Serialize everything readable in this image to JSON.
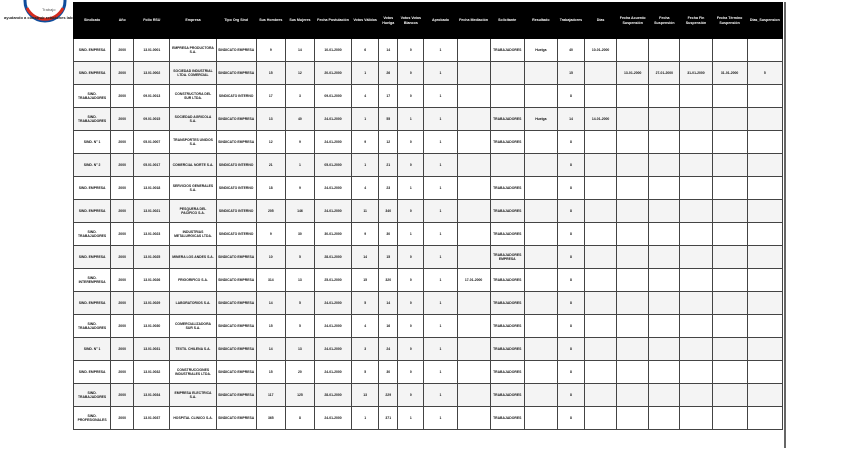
{
  "header": {
    "logo_text": "Trabajo",
    "tagline": "ayudando a construir relaciones laborales",
    "colors": {
      "logo_red": "#d52b1e",
      "logo_blue": "#0f4c9c",
      "header_bg": "#000000"
    }
  },
  "table": {
    "columns": [
      "Sindicato",
      "Año",
      "Folio RSU",
      "Empresa",
      "Tipo Org Sind",
      "Sus Hombres",
      "Sus Mujeres",
      "Fecha Postulación",
      "Votos Válidos",
      "Votos Huelga",
      "Votos Votos Blancos",
      "Aprobado",
      "Fecha Mediación",
      "Solicitante",
      "Resultado",
      "Trabajadores",
      "Días",
      "Fecha Acuerdo Suspensión",
      "Fecha Suspensión",
      "Fecha Fin Suspensión",
      "Fecha Término Suspensión",
      "Dias_Suspension"
    ],
    "rows": [
      [
        "SIND. EMPRESA",
        "2000",
        "13.01.0001",
        "EMPRESA PRODUCTORA S.A.",
        "SINDICATO EMPRESA",
        "9",
        "14",
        "10-01-2000",
        "6",
        "14",
        "0",
        "1",
        "",
        "TRABAJADORES",
        "Huelga",
        "40",
        "10-01-2000",
        "",
        "",
        "",
        "",
        ""
      ],
      [
        "SIND. EMPRESA",
        "2000",
        "13.01.0002",
        "SOCIEDAD INDUSTRIAL LTDA. COMERCIAL",
        "SINDICATO EMPRESA",
        "15",
        "12",
        "20-01-2000",
        "1",
        "26",
        "0",
        "1",
        "",
        "",
        "",
        "15",
        "",
        "13-01-2000",
        "27-01-2000",
        "31-01-2000",
        "31-01-2000",
        "5"
      ],
      [
        "SIND. TRABAJADORES",
        "2000",
        "09.01.0013",
        "CONSTRUCTORA DEL SUR LTDA.",
        "SINDICATO INTERNO",
        "17",
        "3",
        "09-01-2000",
        "4",
        "17",
        "0",
        "1",
        "",
        "",
        "",
        "8",
        "",
        "",
        "",
        "",
        "",
        ""
      ],
      [
        "SIND. TRABAJADORES",
        "2000",
        "09.01.0015",
        "SOCIEDAD AGRICOLA S.A.",
        "SINDICATO EMPRESA",
        "13",
        "40",
        "24-01-2000",
        "1",
        "55",
        "1",
        "1",
        "",
        "TRABAJADORES",
        "Huelga",
        "14",
        "14-01-2000",
        "",
        "",
        "",
        "",
        ""
      ],
      [
        "SIND. N° 1",
        "2000",
        "05.01.0007",
        "TRANSPORTES UNIDOS S.A.",
        "SINDICATO EMPRESA",
        "12",
        "9",
        "24-01-2000",
        "9",
        "12",
        "0",
        "1",
        "",
        "TRABAJADORES",
        "",
        "8",
        "",
        "",
        "",
        "",
        "",
        ""
      ],
      [
        "SIND. N° 2",
        "2000",
        "05.01.0017",
        "COMERCIAL NORTE S.A.",
        "SINDICATO INTERNO",
        "21",
        "1",
        "05-01-2000",
        "1",
        "21",
        "0",
        "1",
        "",
        "",
        "",
        "8",
        "",
        "",
        "",
        "",
        "",
        ""
      ],
      [
        "SIND. EMPRESA",
        "2000",
        "13.01.0018",
        "SERVICIOS GENERALES S.A.",
        "SINDICATO INTERNO",
        "18",
        "9",
        "24-01-2000",
        "4",
        "23",
        "1",
        "1",
        "",
        "TRABAJADORES",
        "",
        "8",
        "",
        "",
        "",
        "",
        "",
        ""
      ],
      [
        "SIND. EMPRESA",
        "2000",
        "13.01.0021",
        "PESQUERA DEL PACIFICO S.A.",
        "SINDICATO INTERNO",
        "205",
        "146",
        "24-01-2000",
        "11",
        "340",
        "0",
        "1",
        "",
        "TRABAJADORES",
        "",
        "8",
        "",
        "",
        "",
        "",
        "",
        ""
      ],
      [
        "SIND. TRABAJADORES",
        "2000",
        "13.01.0023",
        "INDUSTRIAS METALURGICAS LTDA.",
        "SINDICATO INTERNO",
        "9",
        "30",
        "30-01-2000",
        "9",
        "30",
        "1",
        "1",
        "",
        "TRABAJADORES",
        "",
        "8",
        "",
        "",
        "",
        "",
        "",
        ""
      ],
      [
        "SIND. EMPRESA",
        "2000",
        "13.01.0025",
        "MINERA LOS ANDES S.A.",
        "SINDICATO EMPRESA",
        "10",
        "5",
        "28-01-2000",
        "14",
        "15",
        "0",
        "1",
        "",
        "TRABAJADORES EMPRESA",
        "",
        "8",
        "",
        "",
        "",
        "",
        "",
        ""
      ],
      [
        "SIND. INTEREMPRESA",
        "2000",
        "13.01.0026",
        "FRIGORIFICO S.A.",
        "SINDICATO EMPRESA",
        "314",
        "13",
        "25-01-2000",
        "15",
        "320",
        "0",
        "1",
        "17-01-2000",
        "TRABAJADORES",
        "",
        "8",
        "",
        "",
        "",
        "",
        "",
        ""
      ],
      [
        "SIND. EMPRESA",
        "2000",
        "13.01.0029",
        "LABORATORIOS S.A.",
        "SINDICATO EMPRESA",
        "14",
        "5",
        "24-01-2000",
        "5",
        "14",
        "0",
        "1",
        "",
        "TRABAJADORES",
        "",
        "8",
        "",
        "",
        "",
        "",
        "",
        ""
      ],
      [
        "SIND. TRABAJADORES",
        "2000",
        "13.01.0030",
        "COMERCIALIZADORA SUR S.A.",
        "SINDICATO EMPRESA",
        "15",
        "5",
        "24-01-2000",
        "4",
        "16",
        "0",
        "1",
        "",
        "TRABAJADORES",
        "",
        "8",
        "",
        "",
        "",
        "",
        "",
        ""
      ],
      [
        "SIND. N° 1",
        "2000",
        "13.01.0031",
        "TEXTIL CHILENA S.A.",
        "SINDICATO EMPRESA",
        "14",
        "13",
        "24-01-2000",
        "3",
        "24",
        "0",
        "1",
        "",
        "TRABAJADORES",
        "",
        "8",
        "",
        "",
        "",
        "",
        "",
        ""
      ],
      [
        "SIND. EMPRESA",
        "2000",
        "13.01.0032",
        "CONSTRUCCIONES INDUSTRIALES LTDA.",
        "SINDICATO EMPRESA",
        "15",
        "20",
        "24-01-2000",
        "5",
        "30",
        "0",
        "1",
        "",
        "TRABAJADORES",
        "",
        "8",
        "",
        "",
        "",
        "",
        "",
        ""
      ],
      [
        "SIND. TRABAJADORES",
        "2000",
        "13.01.0034",
        "EMPRESA ELECTRICA S.A.",
        "SINDICATO EMPRESA",
        "117",
        "125",
        "28-01-2000",
        "13",
        "229",
        "0",
        "1",
        "",
        "TRABAJADORES",
        "",
        "8",
        "",
        "",
        "",
        "",
        "",
        ""
      ],
      [
        "SIND. PROFESIONALES",
        "2000",
        "13.01.0037",
        "HOSPITAL CLINICO S.A.",
        "SINDICATO EMPRESA",
        "365",
        "8",
        "24-01-2000",
        "1",
        "371",
        "1",
        "1",
        "",
        "TRABAJADORES",
        "",
        "8",
        "",
        "",
        "",
        "",
        "",
        ""
      ]
    ]
  }
}
